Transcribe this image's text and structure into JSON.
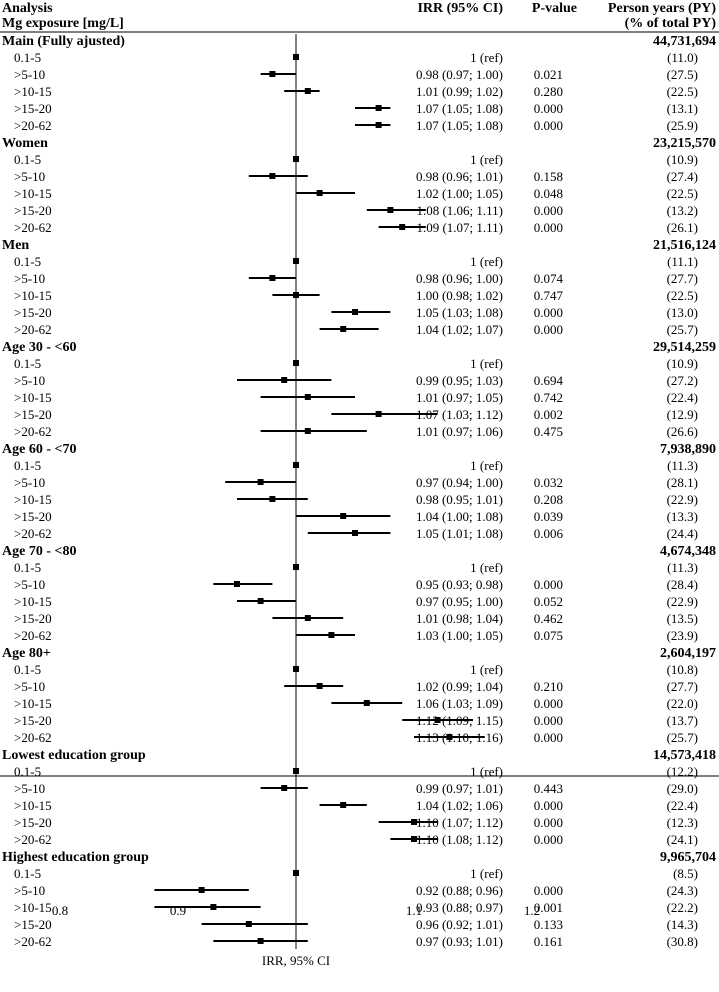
{
  "header": {
    "analysis": "Analysis",
    "exposure": "Mg exposure [mg/L]",
    "irr": "IRR (95% CI)",
    "pvalue": "P-value",
    "py_line1": "Person years (PY)",
    "py_line2": "(% of total PY)"
  },
  "colors": {
    "marker": "#000000",
    "line": "#000000"
  },
  "chart_data": {
    "type": "forest",
    "reference_line": 1.0,
    "xlim": [
      0.8,
      1.2
    ],
    "x_ticks": [
      0.8,
      0.9,
      1.1,
      1.2
    ],
    "x_tick_labels": [
      "0.8",
      "0.9",
      "1.1",
      "1.2"
    ],
    "xlabel": "IRR, 95% CI",
    "groups": [
      {
        "name": "Main  (Fully ajusted)",
        "total_py": "44,731,694",
        "rows": [
          {
            "label": "0.1-5",
            "ci_text": "1 (ref)",
            "p": "",
            "pct": "(11.0)",
            "irr": 1.0,
            "lo": 1.0,
            "hi": 1.0
          },
          {
            "label": ">5-10",
            "ci_text": "0.98 (0.97; 1.00)",
            "p": "0.021",
            "pct": "(27.5)",
            "irr": 0.98,
            "lo": 0.97,
            "hi": 1.0
          },
          {
            "label": ">10-15",
            "ci_text": "1.01 (0.99; 1.02)",
            "p": "0.280",
            "pct": "(22.5)",
            "irr": 1.01,
            "lo": 0.99,
            "hi": 1.02
          },
          {
            "label": ">15-20",
            "ci_text": "1.07 (1.05; 1.08)",
            "p": "0.000",
            "pct": "(13.1)",
            "irr": 1.07,
            "lo": 1.05,
            "hi": 1.08
          },
          {
            "label": ">20-62",
            "ci_text": "1.07 (1.05; 1.08)",
            "p": "0.000",
            "pct": "(25.9)",
            "irr": 1.07,
            "lo": 1.05,
            "hi": 1.08
          }
        ]
      },
      {
        "name": "Women",
        "total_py": "23,215,570",
        "rows": [
          {
            "label": "0.1-5",
            "ci_text": "1 (ref)",
            "p": "",
            "pct": "(10.9)",
            "irr": 1.0,
            "lo": 1.0,
            "hi": 1.0
          },
          {
            "label": ">5-10",
            "ci_text": "0.98 (0.96; 1.01)",
            "p": "0.158",
            "pct": "(27.4)",
            "irr": 0.98,
            "lo": 0.96,
            "hi": 1.01
          },
          {
            "label": ">10-15",
            "ci_text": "1.02 (1.00; 1.05)",
            "p": "0.048",
            "pct": "(22.5)",
            "irr": 1.02,
            "lo": 1.0,
            "hi": 1.05
          },
          {
            "label": ">15-20",
            "ci_text": "1.08 (1.06; 1.11)",
            "p": "0.000",
            "pct": "(13.2)",
            "irr": 1.08,
            "lo": 1.06,
            "hi": 1.11
          },
          {
            "label": ">20-62",
            "ci_text": "1.09 (1.07; 1.11)",
            "p": "0.000",
            "pct": "(26.1)",
            "irr": 1.09,
            "lo": 1.07,
            "hi": 1.11
          }
        ]
      },
      {
        "name": "Men",
        "total_py": "21,516,124",
        "rows": [
          {
            "label": "0.1-5",
            "ci_text": "1 (ref)",
            "p": "",
            "pct": "(11.1)",
            "irr": 1.0,
            "lo": 1.0,
            "hi": 1.0
          },
          {
            "label": ">5-10",
            "ci_text": "0.98 (0.96; 1.00)",
            "p": "0.074",
            "pct": "(27.7)",
            "irr": 0.98,
            "lo": 0.96,
            "hi": 1.0
          },
          {
            "label": ">10-15",
            "ci_text": "1.00 (0.98; 1.02)",
            "p": "0.747",
            "pct": "(22.5)",
            "irr": 1.0,
            "lo": 0.98,
            "hi": 1.02
          },
          {
            "label": ">15-20",
            "ci_text": "1.05 (1.03; 1.08)",
            "p": "0.000",
            "pct": "(13.0)",
            "irr": 1.05,
            "lo": 1.03,
            "hi": 1.08
          },
          {
            "label": ">20-62",
            "ci_text": "1.04 (1.02; 1.07)",
            "p": "0.000",
            "pct": "(25.7)",
            "irr": 1.04,
            "lo": 1.02,
            "hi": 1.07
          }
        ]
      },
      {
        "name": "Age 30 - <60",
        "total_py": "29,514,259",
        "rows": [
          {
            "label": "0.1-5",
            "ci_text": "1 (ref)",
            "p": "",
            "pct": "(10.9)",
            "irr": 1.0,
            "lo": 1.0,
            "hi": 1.0
          },
          {
            "label": ">5-10",
            "ci_text": "0.99 (0.95; 1.03)",
            "p": "0.694",
            "pct": "(27.2)",
            "irr": 0.99,
            "lo": 0.95,
            "hi": 1.03
          },
          {
            "label": ">10-15",
            "ci_text": "1.01 (0.97; 1.05)",
            "p": "0.742",
            "pct": "(22.4)",
            "irr": 1.01,
            "lo": 0.97,
            "hi": 1.05
          },
          {
            "label": ">15-20",
            "ci_text": "1.07 (1.03; 1.12)",
            "p": "0.002",
            "pct": "(12.9)",
            "irr": 1.07,
            "lo": 1.03,
            "hi": 1.12
          },
          {
            "label": ">20-62",
            "ci_text": "1.01 (0.97; 1.06)",
            "p": "0.475",
            "pct": "(26.6)",
            "irr": 1.01,
            "lo": 0.97,
            "hi": 1.06
          }
        ]
      },
      {
        "name": "Age 60 - <70",
        "total_py": "7,938,890",
        "rows": [
          {
            "label": "0.1-5",
            "ci_text": "1 (ref)",
            "p": "",
            "pct": "(11.3)",
            "irr": 1.0,
            "lo": 1.0,
            "hi": 1.0
          },
          {
            "label": ">5-10",
            "ci_text": "0.97 (0.94; 1.00)",
            "p": "0.032",
            "pct": "(28.1)",
            "irr": 0.97,
            "lo": 0.94,
            "hi": 1.0
          },
          {
            "label": ">10-15",
            "ci_text": "0.98 (0.95; 1.01)",
            "p": "0.208",
            "pct": "(22.9)",
            "irr": 0.98,
            "lo": 0.95,
            "hi": 1.01
          },
          {
            "label": ">15-20",
            "ci_text": "1.04 (1.00; 1.08)",
            "p": "0.039",
            "pct": "(13.3)",
            "irr": 1.04,
            "lo": 1.0,
            "hi": 1.08
          },
          {
            "label": ">20-62",
            "ci_text": "1.05 (1.01; 1.08)",
            "p": "0.006",
            "pct": "(24.4)",
            "irr": 1.05,
            "lo": 1.01,
            "hi": 1.08
          }
        ]
      },
      {
        "name": "Age 70 - <80",
        "total_py": "4,674,348",
        "rows": [
          {
            "label": "0.1-5",
            "ci_text": "1 (ref)",
            "p": "",
            "pct": "(11.3)",
            "irr": 1.0,
            "lo": 1.0,
            "hi": 1.0
          },
          {
            "label": ">5-10",
            "ci_text": "0.95 (0.93; 0.98)",
            "p": "0.000",
            "pct": "(28.4)",
            "irr": 0.95,
            "lo": 0.93,
            "hi": 0.98
          },
          {
            "label": ">10-15",
            "ci_text": "0.97 (0.95; 1.00)",
            "p": "0.052",
            "pct": "(22.9)",
            "irr": 0.97,
            "lo": 0.95,
            "hi": 1.0
          },
          {
            "label": ">15-20",
            "ci_text": "1.01 (0.98; 1.04)",
            "p": "0.462",
            "pct": "(13.5)",
            "irr": 1.01,
            "lo": 0.98,
            "hi": 1.04
          },
          {
            "label": ">20-62",
            "ci_text": "1.03 (1.00; 1.05)",
            "p": "0.075",
            "pct": "(23.9)",
            "irr": 1.03,
            "lo": 1.0,
            "hi": 1.05
          }
        ]
      },
      {
        "name": "Age 80+",
        "total_py": "2,604,197",
        "rows": [
          {
            "label": "0.1-5",
            "ci_text": "1 (ref)",
            "p": "",
            "pct": "(10.8)",
            "irr": 1.0,
            "lo": 1.0,
            "hi": 1.0
          },
          {
            "label": ">5-10",
            "ci_text": "1.02 (0.99; 1.04)",
            "p": "0.210",
            "pct": "(27.7)",
            "irr": 1.02,
            "lo": 0.99,
            "hi": 1.04
          },
          {
            "label": ">10-15",
            "ci_text": "1.06 (1.03; 1.09)",
            "p": "0.000",
            "pct": "(22.0)",
            "irr": 1.06,
            "lo": 1.03,
            "hi": 1.09
          },
          {
            "label": ">15-20",
            "ci_text": "1.12 (1.09; 1.15)",
            "p": "0.000",
            "pct": "(13.7)",
            "irr": 1.12,
            "lo": 1.09,
            "hi": 1.15
          },
          {
            "label": ">20-62",
            "ci_text": "1.13 (1.10; 1.16)",
            "p": "0.000",
            "pct": "(25.7)",
            "irr": 1.13,
            "lo": 1.1,
            "hi": 1.16
          }
        ]
      },
      {
        "name": "Lowest education group",
        "total_py": "14,573,418",
        "rows": [
          {
            "label": "0.1-5",
            "ci_text": "1 (ref)",
            "p": "",
            "pct": "(12.2)",
            "irr": 1.0,
            "lo": 1.0,
            "hi": 1.0
          },
          {
            "label": ">5-10",
            "ci_text": "0.99 (0.97; 1.01)",
            "p": "0.443",
            "pct": "(29.0)",
            "irr": 0.99,
            "lo": 0.97,
            "hi": 1.01
          },
          {
            "label": ">10-15",
            "ci_text": "1.04 (1.02; 1.06)",
            "p": "0.000",
            "pct": "(22.4)",
            "irr": 1.04,
            "lo": 1.02,
            "hi": 1.06
          },
          {
            "label": ">15-20",
            "ci_text": "1.10 (1.07; 1.12)",
            "p": "0.000",
            "pct": "(12.3)",
            "irr": 1.1,
            "lo": 1.07,
            "hi": 1.12
          },
          {
            "label": ">20-62",
            "ci_text": "1.10 (1.08; 1.12)",
            "p": "0.000",
            "pct": "(24.1)",
            "irr": 1.1,
            "lo": 1.08,
            "hi": 1.12
          }
        ]
      },
      {
        "name": "Highest education group",
        "total_py": "9,965,704",
        "rows": [
          {
            "label": "0.1-5",
            "ci_text": "1 (ref)",
            "p": "",
            "pct": "(8.5)",
            "irr": 1.0,
            "lo": 1.0,
            "hi": 1.0
          },
          {
            "label": ">5-10",
            "ci_text": "0.92 (0.88; 0.96)",
            "p": "0.000",
            "pct": "(24.3)",
            "irr": 0.92,
            "lo": 0.88,
            "hi": 0.96
          },
          {
            "label": ">10-15",
            "ci_text": "0.93 (0.88; 0.97)",
            "p": "0.001",
            "pct": "(22.2)",
            "irr": 0.93,
            "lo": 0.88,
            "hi": 0.97
          },
          {
            "label": ">15-20",
            "ci_text": "0.96 (0.92; 1.01)",
            "p": "0.133",
            "pct": "(14.3)",
            "irr": 0.96,
            "lo": 0.92,
            "hi": 1.01
          },
          {
            "label": ">20-62",
            "ci_text": "0.97 (0.93; 1.01)",
            "p": "0.161",
            "pct": "(30.8)",
            "irr": 0.97,
            "lo": 0.93,
            "hi": 1.01
          }
        ]
      }
    ]
  }
}
